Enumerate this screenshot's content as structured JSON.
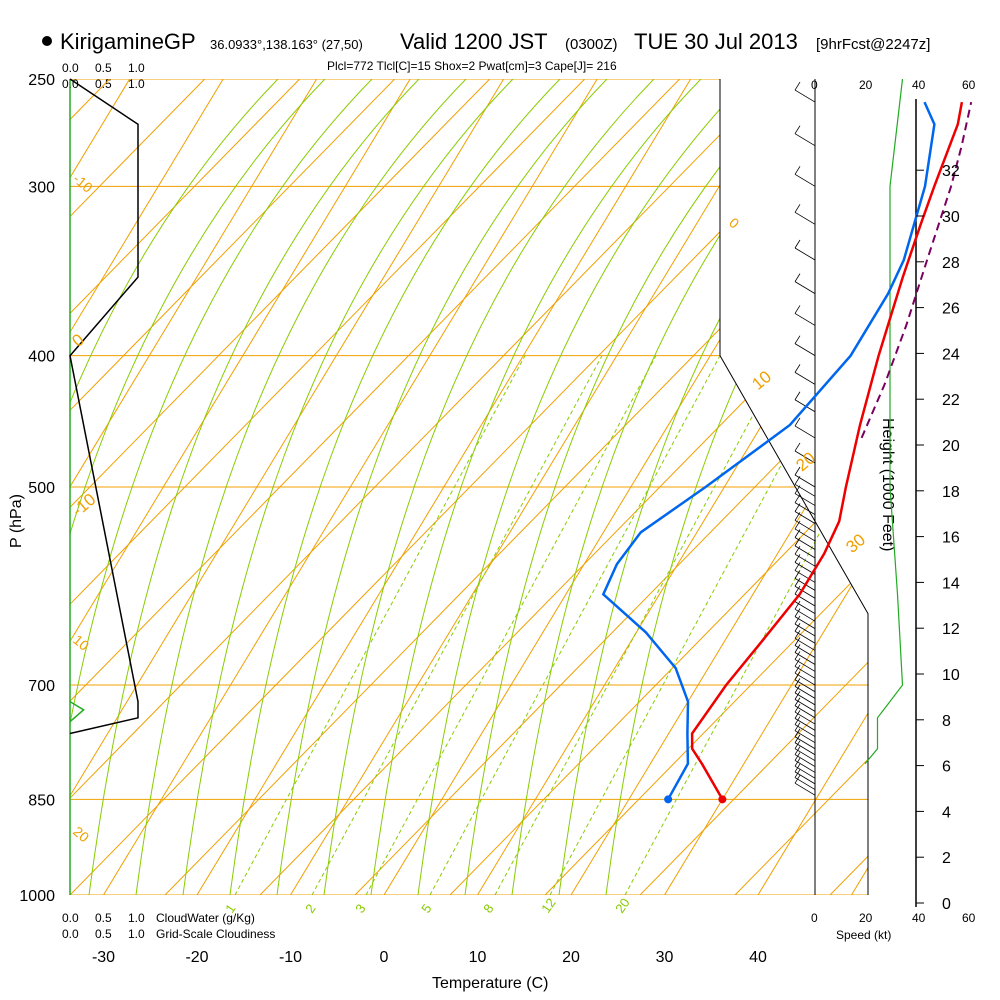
{
  "header": {
    "station": "KirigamineGP",
    "coords": "36.0933°,138.163° (27,50)",
    "valid": "Valid 1200 JST",
    "zulu": "(0300Z)",
    "date": "TUE 30 Jul 2013",
    "forecast": "[9hrFcst@2247z]"
  },
  "indices": "Plcl=772 Tlcl[C]=15 Shox=2 Pwat[cm]=3 Cape[J]= 216",
  "scale_labels": {
    "cloudwater_ticks": [
      "0.0",
      "0.5",
      "1.0"
    ],
    "cloudiness_ticks": [
      "0.0",
      "0.5",
      "1.0"
    ],
    "cloudwater_label": "CloudWater (g/Kg)",
    "cloudiness_label": "Grid-Scale Cloudiness",
    "speed_ticks": [
      "0",
      "20",
      "40",
      "60"
    ],
    "speed_label": "Speed (kt)"
  },
  "colors": {
    "isotherm": "#f0a000",
    "dry_adiabat": "#f0a000",
    "moist_adiabat": "#88cc00",
    "mixing_ratio": "#88cc00",
    "temperature": "#ee0000",
    "dewpoint": "#0066ee",
    "parcel": "#7a0060",
    "green_text": "#22aa22",
    "indices_text": "#990066"
  },
  "chart_data": {
    "type": "line",
    "xlabel": "Temperature (C)",
    "ylabel": "P (hPa)",
    "y2label": "Height (1000 Feet)",
    "pressure_ticks": [
      250,
      300,
      400,
      500,
      700,
      850,
      1000
    ],
    "temperature_ticks": [
      -30,
      -20,
      -10,
      0,
      10,
      20,
      30,
      40
    ],
    "height_ticks": [
      0,
      2,
      4,
      6,
      8,
      10,
      12,
      14,
      16,
      18,
      20,
      22,
      24,
      26,
      28,
      30,
      32
    ],
    "dry_adiabat_labels": [
      "-10",
      "0",
      "10",
      "20",
      "30"
    ],
    "moist_adiabat_labels": [
      "-10",
      "0",
      "10",
      "20",
      "30"
    ],
    "mixing_ratio_labels": [
      "1",
      "2",
      "3",
      "5",
      "8",
      "12",
      "20"
    ],
    "series": [
      {
        "name": "Temperature",
        "points": [
          [
            850,
            30.0
          ],
          [
            800,
            25.5
          ],
          [
            780,
            23.5
          ],
          [
            760,
            22.5
          ],
          [
            700,
            23.0
          ],
          [
            650,
            24.0
          ],
          [
            600,
            25.0
          ],
          [
            560,
            25.0
          ],
          [
            530,
            24.5
          ],
          [
            500,
            23.0
          ],
          [
            450,
            20.5
          ],
          [
            400,
            18.0
          ],
          [
            350,
            15.5
          ],
          [
            320,
            14.0
          ],
          [
            300,
            13.0
          ],
          [
            270,
            11.5
          ],
          [
            260,
            10.5
          ]
        ]
      },
      {
        "name": "Dewpoint",
        "points": [
          [
            850,
            24.2
          ],
          [
            800,
            24.0
          ],
          [
            760,
            22.0
          ],
          [
            720,
            20.0
          ],
          [
            680,
            16.5
          ],
          [
            640,
            11.0
          ],
          [
            600,
            4.0
          ],
          [
            570,
            3.5
          ],
          [
            540,
            4.0
          ],
          [
            500,
            8.0
          ],
          [
            450,
            13.0
          ],
          [
            400,
            15.0
          ],
          [
            360,
            15.0
          ],
          [
            340,
            14.5
          ],
          [
            300,
            12.0
          ],
          [
            270,
            9.0
          ],
          [
            260,
            6.5
          ]
        ]
      },
      {
        "name": "Parcel",
        "points": [
          [
            460,
            21.5
          ],
          [
            420,
            20.5
          ],
          [
            380,
            19.0
          ],
          [
            340,
            17.0
          ],
          [
            300,
            14.8
          ],
          [
            280,
            13.3
          ],
          [
            260,
            11.5
          ]
        ]
      }
    ],
    "surface_markers": [
      {
        "series": "Temperature",
        "pressure": 850,
        "temperature": 30.0
      },
      {
        "series": "Dewpoint",
        "pressure": 850,
        "temperature": 24.2
      }
    ],
    "cloudiness_profile": [
      [
        250,
        0.0
      ],
      [
        270,
        1.0
      ],
      [
        300,
        1.0
      ],
      [
        350,
        1.0
      ],
      [
        400,
        0.0
      ],
      [
        720,
        1.0
      ],
      [
        740,
        1.0
      ],
      [
        760,
        0.0
      ]
    ],
    "cloudwater_profile": [
      [
        720,
        0.0
      ],
      [
        730,
        0.2
      ],
      [
        745,
        0.0
      ]
    ],
    "wind_speed_profile": [
      [
        250,
        35
      ],
      [
        300,
        30
      ],
      [
        400,
        30
      ],
      [
        500,
        30
      ],
      [
        600,
        33
      ],
      [
        700,
        35
      ],
      [
        740,
        25
      ],
      [
        780,
        25
      ],
      [
        800,
        20
      ]
    ]
  }
}
